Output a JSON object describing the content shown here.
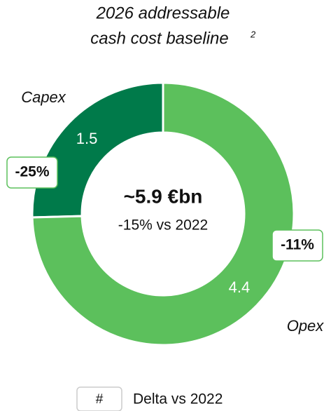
{
  "chart_data": {
    "type": "donut",
    "title_lines": [
      "2026 addressable",
      "cash cost baseline"
    ],
    "title_superscript": "2",
    "categories": [
      "Capex",
      "Opex"
    ],
    "values": [
      1.5,
      4.4
    ],
    "colors": [
      "#007a4a",
      "#5cc05c"
    ],
    "deltas": [
      -25,
      -11
    ],
    "delta_labels": [
      "-25%",
      "-11%"
    ],
    "center_title": "~5.9 €bn",
    "center_subtitle": "-15% vs 2022",
    "legend": {
      "symbol": "#",
      "label": "Delta vs 2022"
    }
  }
}
